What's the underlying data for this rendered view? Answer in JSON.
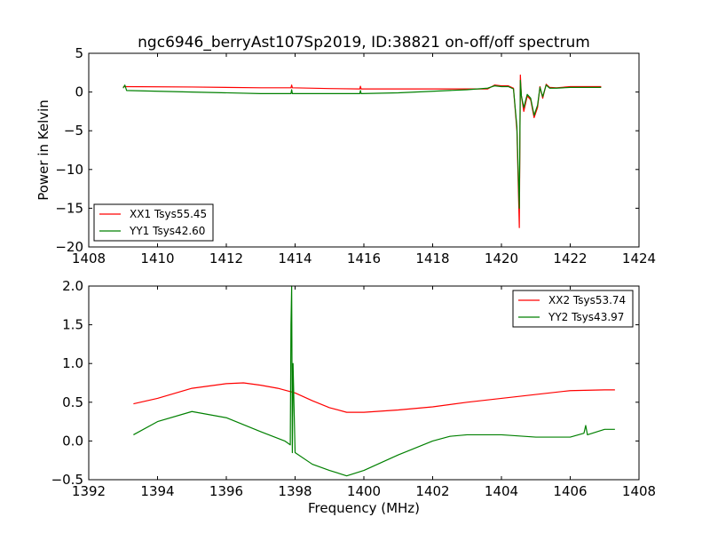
{
  "figure": {
    "title": "ngc6946_berryAst107Sp2019, ID:38821 on-off/off spectrum",
    "ylabel": "Power in Kelvin",
    "xlabel": "Frequency (MHz)"
  },
  "colors": {
    "XX": "#ff0000",
    "YY": "#008000"
  },
  "chart_data": [
    {
      "type": "line",
      "xlim": [
        1408,
        1424
      ],
      "ylim": [
        -20,
        5
      ],
      "xticks": [
        1408,
        1410,
        1412,
        1414,
        1416,
        1418,
        1420,
        1422,
        1424
      ],
      "yticks": [
        5,
        0,
        -5,
        -10,
        -15,
        -20
      ],
      "legend_position": "lower-left",
      "series": [
        {
          "name": "XX1 Tsys55.45",
          "color": "#ff0000",
          "x": [
            1409.0,
            1411.0,
            1413.0,
            1413.88,
            1413.9,
            1413.92,
            1415.0,
            1415.88,
            1415.9,
            1415.92,
            1417.0,
            1419.0,
            1419.6,
            1419.8,
            1420.0,
            1420.2,
            1420.35,
            1420.45,
            1420.52,
            1420.55,
            1420.58,
            1420.65,
            1420.75,
            1420.85,
            1420.95,
            1421.05,
            1421.12,
            1421.2,
            1421.3,
            1421.4,
            1421.6,
            1422.0,
            1422.9
          ],
          "y": [
            0.7,
            0.65,
            0.55,
            0.55,
            0.9,
            0.55,
            0.45,
            0.4,
            0.75,
            0.4,
            0.4,
            0.4,
            0.4,
            0.9,
            0.8,
            0.8,
            0.5,
            -5.0,
            -17.5,
            2.2,
            -0.5,
            -2.5,
            -0.5,
            -1.0,
            -3.3,
            -2.0,
            0.7,
            -0.8,
            1.0,
            0.6,
            0.55,
            0.7,
            0.7
          ]
        },
        {
          "name": "YY1 Tsys42.60",
          "color": "#008000",
          "x": [
            1409.0,
            1409.05,
            1409.1,
            1411.0,
            1413.0,
            1413.88,
            1413.9,
            1413.92,
            1415.0,
            1415.88,
            1415.9,
            1415.92,
            1417.0,
            1419.0,
            1419.6,
            1419.8,
            1420.0,
            1420.2,
            1420.35,
            1420.45,
            1420.52,
            1420.55,
            1420.58,
            1420.65,
            1420.75,
            1420.85,
            1420.95,
            1421.05,
            1421.12,
            1421.2,
            1421.3,
            1421.4,
            1421.6,
            1422.0,
            1422.9
          ],
          "y": [
            0.5,
            0.9,
            0.2,
            0.0,
            -0.2,
            -0.2,
            0.3,
            -0.2,
            -0.2,
            -0.2,
            0.2,
            -0.2,
            -0.1,
            0.3,
            0.5,
            0.8,
            0.7,
            0.7,
            0.4,
            -4.5,
            -15.0,
            1.5,
            -0.5,
            -2.0,
            -0.3,
            -0.8,
            -3.0,
            -1.7,
            0.6,
            -0.6,
            0.9,
            0.5,
            0.5,
            0.6,
            0.6
          ]
        }
      ]
    },
    {
      "type": "line",
      "xlim": [
        1392,
        1408
      ],
      "ylim": [
        -0.5,
        2.0
      ],
      "xticks": [
        1392,
        1394,
        1396,
        1398,
        1400,
        1402,
        1404,
        1406,
        1408
      ],
      "yticks": [
        2.0,
        1.5,
        1.0,
        0.5,
        0.0,
        -0.5
      ],
      "legend_position": "upper-right",
      "series": [
        {
          "name": "XX2 Tsys53.74",
          "color": "#ff0000",
          "x": [
            1393.3,
            1394.0,
            1395.0,
            1396.0,
            1396.5,
            1397.0,
            1397.5,
            1398.0,
            1398.5,
            1399.0,
            1399.5,
            1400.0,
            1401.0,
            1402.0,
            1403.0,
            1404.0,
            1405.0,
            1406.0,
            1407.0,
            1407.3
          ],
          "y": [
            0.48,
            0.55,
            0.68,
            0.74,
            0.75,
            0.72,
            0.68,
            0.62,
            0.52,
            0.43,
            0.37,
            0.37,
            0.4,
            0.44,
            0.5,
            0.55,
            0.6,
            0.65,
            0.66,
            0.66
          ]
        },
        {
          "name": "YY2 Tsys43.97",
          "color": "#008000",
          "x": [
            1393.3,
            1394.0,
            1395.0,
            1396.0,
            1397.0,
            1397.7,
            1397.86,
            1397.88,
            1397.9,
            1397.92,
            1397.94,
            1398.0,
            1398.5,
            1399.0,
            1399.5,
            1400.0,
            1401.0,
            1402.0,
            1402.5,
            1403.0,
            1404.0,
            1405.0,
            1406.0,
            1406.4,
            1406.45,
            1406.5,
            1407.0,
            1407.3
          ],
          "y": [
            0.08,
            0.25,
            0.38,
            0.3,
            0.12,
            0.0,
            -0.05,
            1.5,
            2.0,
            -0.15,
            1.0,
            -0.15,
            -0.3,
            -0.38,
            -0.45,
            -0.38,
            -0.18,
            0.0,
            0.06,
            0.08,
            0.08,
            0.05,
            0.05,
            0.1,
            0.2,
            0.08,
            0.15,
            0.15
          ]
        }
      ]
    }
  ]
}
